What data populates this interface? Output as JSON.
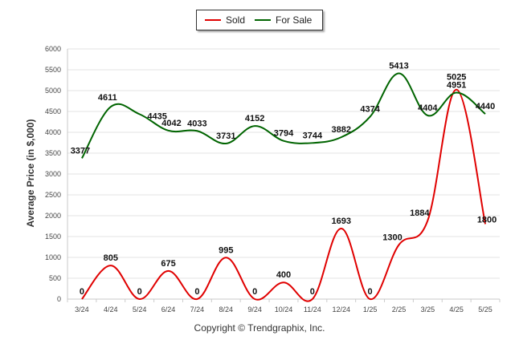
{
  "chart_data": {
    "type": "line",
    "title": "",
    "xlabel": "",
    "ylabel": "Average Price (in $,000)",
    "categories": [
      "3/24",
      "4/24",
      "5/24",
      "6/24",
      "7/24",
      "8/24",
      "9/24",
      "10/24",
      "11/24",
      "12/24",
      "1/25",
      "2/25",
      "3/25",
      "4/25",
      "5/25"
    ],
    "ylim": [
      0,
      6000
    ],
    "yticks": [
      0,
      500,
      1000,
      1500,
      2000,
      2500,
      3000,
      3500,
      4000,
      4500,
      5000,
      5500,
      6000
    ],
    "grid": true,
    "legend_position": "top-center",
    "series": [
      {
        "name": "Sold",
        "color": "#e00000",
        "values": [
          0,
          805,
          0,
          675,
          0,
          995,
          0,
          400,
          0,
          1693,
          0,
          1300,
          1884,
          5025,
          1800
        ],
        "labels": [
          "0",
          "805",
          "0",
          "675",
          "0",
          "995",
          "0",
          "400",
          "0",
          "1693",
          "0",
          "1300",
          "1884",
          "5025",
          "1800"
        ]
      },
      {
        "name": "For Sale",
        "color": "#006400",
        "values": [
          3377,
          4611,
          4435,
          4042,
          4033,
          3731,
          4152,
          3794,
          3744,
          3882,
          4374,
          5413,
          4404,
          4951,
          4440
        ],
        "labels": [
          "3377",
          "4611",
          "4435",
          "4042",
          "4033",
          "3731",
          "4152",
          "3794",
          "3744",
          "3882",
          "4374",
          "5413",
          "4404",
          "4951",
          "4440"
        ]
      }
    ]
  },
  "legend": {
    "sold_label": "Sold",
    "forsale_label": "For Sale"
  },
  "footer": {
    "copyright": "Copyright © Trendgraphix, Inc."
  }
}
